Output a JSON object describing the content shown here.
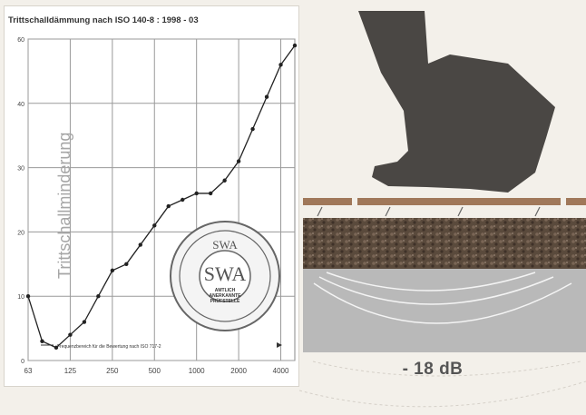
{
  "chart_data": {
    "type": "line",
    "title": "Trittschalldämmung nach ISO 140-8 : 1998 - 03",
    "ylabel": "Trittschallminderung",
    "xlabel": "",
    "x_scale": "log",
    "categories": [
      "63",
      "80",
      "100",
      "125",
      "160",
      "200",
      "250",
      "315",
      "400",
      "500",
      "630",
      "800",
      "1000",
      "1250",
      "1600",
      "2000",
      "2500",
      "3150",
      "4000",
      "5000"
    ],
    "x_tick_labels": [
      "63",
      "125",
      "250",
      "500",
      "1000",
      "2000",
      "4000"
    ],
    "series": [
      {
        "values": [
          10,
          3,
          2,
          4,
          6,
          10,
          14,
          15,
          18,
          21,
          24,
          25,
          26,
          26,
          28,
          31,
          36,
          41,
          46,
          49
        ]
      }
    ],
    "y_tick_labels": [
      "60",
      "40",
      "30",
      "20",
      "10",
      "0"
    ],
    "ylim": [
      0,
      50
    ],
    "grid": true,
    "note": "Frequenzbereich für die Bewertung nach ISO 717-2",
    "line_color": "#222222"
  },
  "seal": {
    "top_text": "SWA",
    "line1": "AMTLICH",
    "line2": "ANERKANNTE",
    "line3": "PRÜFSTELLE"
  },
  "illustration": {
    "result_label": "- 18 dB",
    "boot_color": "#4a4744",
    "floor_color": "#a0785a",
    "granulate_color": "#5a4a3c",
    "concrete_color": "#b9b9b9"
  }
}
